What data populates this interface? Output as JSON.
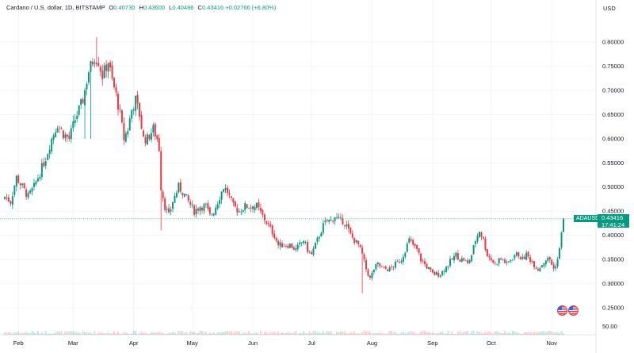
{
  "header": {
    "symbol_line": "Cardano / U.S. dollar, 1D, BITSTAMP",
    "open_label": "O",
    "open": "0.40730",
    "high_label": "H",
    "high": "0.43600",
    "low_label": "L",
    "low": "0.40486",
    "close_label": "C",
    "close": "0.43416",
    "change": "+0.02766 (+6.80%)"
  },
  "price_tag": {
    "symbol": "ADAUSD",
    "price": "0.43416",
    "countdown": "17:41:24"
  },
  "colors": {
    "up": "#089981",
    "down": "#f23645",
    "grid": "#f0f3fa",
    "axis_text": "#131722"
  },
  "chart_data": {
    "type": "candlestick",
    "currency_label": "USD",
    "y_ticks": [
      "0.80000",
      "0.75000",
      "0.70000",
      "0.65000",
      "0.60000",
      "0.55000",
      "0.50000",
      "0.45000",
      "0.40000",
      "0.35000",
      "0.30000",
      "0.25000"
    ],
    "volume_tick": "50.00",
    "x_ticks": [
      "Feb",
      "Mar",
      "Apr",
      "May",
      "Jun",
      "Jul",
      "Aug",
      "Sep",
      "Oct",
      "Nov"
    ],
    "ylim": [
      0.2,
      0.85
    ],
    "last_price": 0.43416,
    "anchors": [
      [
        0,
        0.48
      ],
      [
        3,
        0.47
      ],
      [
        6,
        0.52
      ],
      [
        9,
        0.5
      ],
      [
        12,
        0.48
      ],
      [
        15,
        0.5
      ],
      [
        18,
        0.53
      ],
      [
        21,
        0.56
      ],
      [
        24,
        0.6
      ],
      [
        27,
        0.63
      ],
      [
        30,
        0.61
      ],
      [
        33,
        0.6
      ],
      [
        36,
        0.64
      ],
      [
        40,
        0.68
      ],
      [
        43,
        0.74
      ],
      [
        46,
        0.77
      ],
      [
        48,
        0.76
      ],
      [
        50,
        0.73
      ],
      [
        53,
        0.76
      ],
      [
        55,
        0.72
      ],
      [
        57,
        0.69
      ],
      [
        59,
        0.65
      ],
      [
        61,
        0.6
      ],
      [
        63,
        0.62
      ],
      [
        65,
        0.66
      ],
      [
        67,
        0.68
      ],
      [
        69,
        0.65
      ],
      [
        71,
        0.6
      ],
      [
        73,
        0.6
      ],
      [
        76,
        0.62
      ],
      [
        78,
        0.6
      ],
      [
        79,
        0.58
      ],
      [
        80,
        0.5
      ],
      [
        82,
        0.46
      ],
      [
        84,
        0.44
      ],
      [
        86,
        0.47
      ],
      [
        89,
        0.5
      ],
      [
        91,
        0.49
      ],
      [
        94,
        0.47
      ],
      [
        97,
        0.45
      ],
      [
        100,
        0.46
      ],
      [
        103,
        0.46
      ],
      [
        105,
        0.44
      ],
      [
        107,
        0.45
      ],
      [
        110,
        0.48
      ],
      [
        112,
        0.5
      ],
      [
        114,
        0.49
      ],
      [
        117,
        0.46
      ],
      [
        120,
        0.45
      ],
      [
        123,
        0.46
      ],
      [
        126,
        0.46
      ],
      [
        129,
        0.46
      ],
      [
        132,
        0.44
      ],
      [
        135,
        0.42
      ],
      [
        138,
        0.4
      ],
      [
        140,
        0.38
      ],
      [
        143,
        0.38
      ],
      [
        146,
        0.38
      ],
      [
        149,
        0.37
      ],
      [
        151,
        0.38
      ],
      [
        153,
        0.39
      ],
      [
        155,
        0.37
      ],
      [
        157,
        0.36
      ],
      [
        159,
        0.38
      ],
      [
        161,
        0.4
      ],
      [
        163,
        0.42
      ],
      [
        165,
        0.43
      ],
      [
        167,
        0.43
      ],
      [
        169,
        0.44
      ],
      [
        171,
        0.43
      ],
      [
        173,
        0.43
      ],
      [
        175,
        0.42
      ],
      [
        177,
        0.4
      ],
      [
        179,
        0.39
      ],
      [
        181,
        0.38
      ],
      [
        183,
        0.36
      ],
      [
        185,
        0.33
      ],
      [
        187,
        0.31
      ],
      [
        189,
        0.33
      ],
      [
        191,
        0.34
      ],
      [
        194,
        0.33
      ],
      [
        197,
        0.33
      ],
      [
        200,
        0.34
      ],
      [
        203,
        0.35
      ],
      [
        205,
        0.37
      ],
      [
        207,
        0.39
      ],
      [
        209,
        0.38
      ],
      [
        211,
        0.37
      ],
      [
        213,
        0.35
      ],
      [
        215,
        0.34
      ],
      [
        217,
        0.33
      ],
      [
        219,
        0.32
      ],
      [
        221,
        0.32
      ],
      [
        223,
        0.32
      ],
      [
        225,
        0.33
      ],
      [
        227,
        0.34
      ],
      [
        229,
        0.35
      ],
      [
        231,
        0.36
      ],
      [
        233,
        0.35
      ],
      [
        235,
        0.35
      ],
      [
        237,
        0.34
      ],
      [
        239,
        0.36
      ],
      [
        241,
        0.39
      ],
      [
        243,
        0.41
      ],
      [
        245,
        0.39
      ],
      [
        247,
        0.36
      ],
      [
        249,
        0.35
      ],
      [
        251,
        0.34
      ],
      [
        253,
        0.35
      ],
      [
        255,
        0.35
      ],
      [
        257,
        0.34
      ],
      [
        259,
        0.35
      ],
      [
        261,
        0.36
      ],
      [
        263,
        0.36
      ],
      [
        265,
        0.35
      ],
      [
        267,
        0.36
      ],
      [
        269,
        0.35
      ],
      [
        271,
        0.34
      ],
      [
        273,
        0.33
      ],
      [
        275,
        0.34
      ],
      [
        277,
        0.35
      ],
      [
        279,
        0.35
      ],
      [
        281,
        0.33
      ],
      [
        283,
        0.35
      ],
      [
        284,
        0.37
      ],
      [
        285,
        0.41
      ],
      [
        286,
        0.43416
      ]
    ],
    "wick_spikes": [
      [
        47,
        0.81,
        "high"
      ],
      [
        44,
        0.6,
        "low"
      ],
      [
        80,
        0.41,
        "low"
      ],
      [
        183,
        0.28,
        "low"
      ],
      [
        41,
        0.6,
        "low"
      ]
    ]
  }
}
